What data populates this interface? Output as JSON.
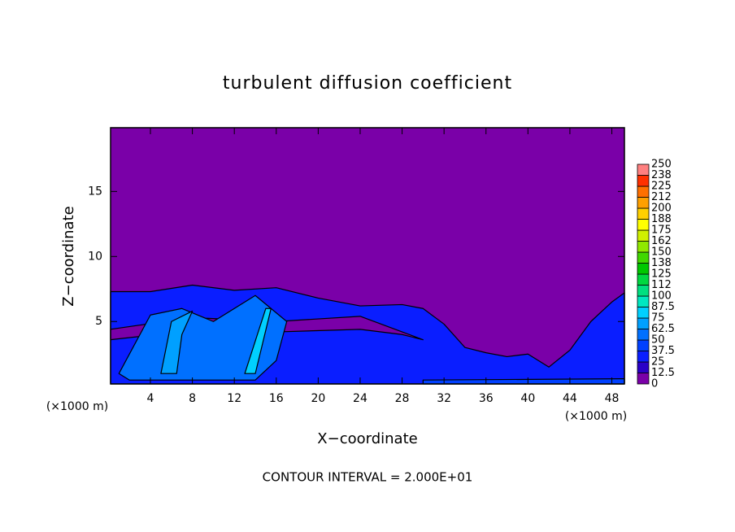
{
  "chart_data": {
    "type": "contour",
    "title": "turbulent diffusion coefficient",
    "x_label": "X−coordinate",
    "y_label": "Z−coordinate",
    "x_unit_labels": [
      "(×1000 m)",
      "(×1000 m)"
    ],
    "note": "CONTOUR INTERVAL = 2.000E+01",
    "xlim": [
      0.2,
      49.2
    ],
    "ylim": [
      0.2,
      19.9
    ],
    "xticks": [
      4,
      8,
      12,
      16,
      20,
      24,
      28,
      32,
      36,
      40,
      44,
      48
    ],
    "yticks": [
      5,
      10,
      15
    ],
    "colorbar": {
      "levels": [
        0,
        12.5,
        25,
        37.5,
        50,
        62.5,
        75,
        87.5,
        100,
        {
          "value": 112.5,
          "label": "112"
        },
        125,
        {
          "value": 137.5,
          "label": "138"
        },
        150,
        {
          "value": 162.5,
          "label": "162"
        },
        175,
        {
          "value": 187.5,
          "label": "188"
        },
        200,
        {
          "value": 212.5,
          "label": "212"
        },
        225,
        {
          "value": 237.5,
          "label": "238"
        },
        250
      ],
      "colors": [
        "#7a00a8",
        "#2a00c8",
        "#0a1eff",
        "#0040ff",
        "#0070ff",
        "#00a0ff",
        "#00d0ff",
        "#00e8c0",
        "#00e080",
        "#00d840",
        "#00c800",
        "#40d800",
        "#90e800",
        "#d0f000",
        "#ffff00",
        "#ffd000",
        "#ffa000",
        "#ff7000",
        "#ff3000",
        "#ff8080"
      ]
    },
    "regions": [
      {
        "level": 0,
        "x": [
          0.2,
          49.2,
          49.2,
          0.2
        ],
        "y": [
          0.2,
          0.2,
          19.9,
          19.9
        ]
      },
      {
        "level": 25,
        "x": [
          0.2,
          4,
          8,
          12,
          16,
          20,
          24,
          28,
          30,
          32,
          34,
          36,
          38,
          40,
          42,
          44,
          46,
          48,
          49.2,
          49.2,
          0.2
        ],
        "y": [
          7.3,
          7.3,
          7.8,
          7.4,
          7.6,
          6.8,
          6.2,
          6.3,
          6.0,
          4.8,
          3.0,
          2.6,
          2.3,
          2.5,
          1.5,
          2.8,
          5.0,
          6.5,
          7.2,
          0.2,
          0.2
        ]
      },
      {
        "level": 0,
        "x": [
          0.2,
          8,
          16,
          24,
          30,
          28,
          24,
          16,
          8,
          0.2
        ],
        "y": [
          4.4,
          5.3,
          5.0,
          5.4,
          3.6,
          4.0,
          4.4,
          4.2,
          4.3,
          3.6
        ]
      },
      {
        "level": 50,
        "x": [
          1,
          4,
          7,
          10,
          14,
          17,
          16,
          14,
          6,
          2
        ],
        "y": [
          1,
          5.5,
          6,
          5,
          7,
          5,
          2,
          0.5,
          0.5,
          0.5
        ]
      },
      {
        "level": 62.5,
        "x": [
          5,
          6,
          8,
          7,
          6.5
        ],
        "y": [
          1,
          5,
          5.8,
          4,
          1
        ]
      },
      {
        "level": 75,
        "x": [
          13,
          15,
          15.5,
          14
        ],
        "y": [
          1,
          6,
          6,
          1
        ]
      },
      {
        "level": 37.5,
        "x": [
          30,
          49.2,
          49.2,
          30
        ],
        "y": [
          0.2,
          0.2,
          0.6,
          0.5
        ]
      }
    ]
  }
}
